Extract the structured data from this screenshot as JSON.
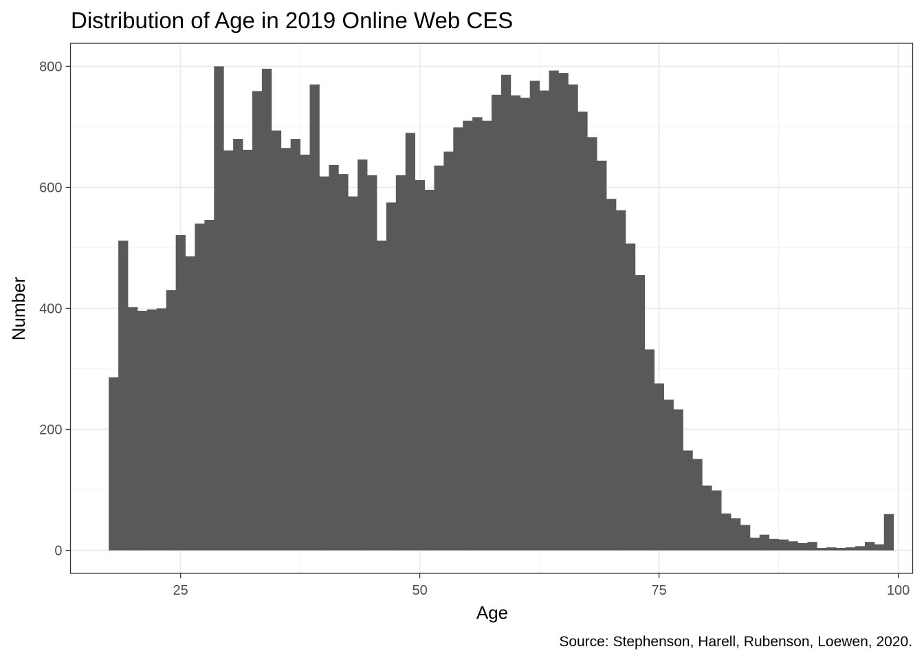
{
  "chart_data": {
    "type": "bar",
    "title": "Distribution of Age in 2019 Online Web CES",
    "xlabel": "Age",
    "ylabel": "Number",
    "caption": "Source: Stephenson, Harell, Rubenson, Loewen, 2020.",
    "xlim": [
      13.5,
      101.5
    ],
    "ylim": [
      -38,
      838
    ],
    "xticks": [
      25,
      50,
      75,
      100
    ],
    "yticks": [
      0,
      200,
      400,
      600,
      800
    ],
    "bar_color": "#595959",
    "grid": true,
    "x": [
      18,
      19,
      20,
      21,
      22,
      23,
      24,
      25,
      26,
      27,
      28,
      29,
      30,
      31,
      32,
      33,
      34,
      35,
      36,
      37,
      38,
      39,
      40,
      41,
      42,
      43,
      44,
      45,
      46,
      47,
      48,
      49,
      50,
      51,
      52,
      53,
      54,
      55,
      56,
      57,
      58,
      59,
      60,
      61,
      62,
      63,
      64,
      65,
      66,
      67,
      68,
      69,
      70,
      71,
      72,
      73,
      74,
      75,
      76,
      77,
      78,
      79,
      80,
      81,
      82,
      83,
      84,
      85,
      86,
      87,
      88,
      89,
      90,
      91,
      92,
      93,
      94,
      95,
      96,
      97,
      98,
      99
    ],
    "values": [
      286,
      512,
      402,
      396,
      398,
      400,
      430,
      521,
      486,
      540,
      546,
      800,
      661,
      680,
      662,
      759,
      796,
      694,
      665,
      680,
      654,
      770,
      618,
      637,
      622,
      585,
      646,
      620,
      512,
      575,
      620,
      690,
      612,
      596,
      636,
      659,
      699,
      710,
      716,
      710,
      753,
      786,
      752,
      748,
      776,
      760,
      793,
      789,
      770,
      725,
      683,
      644,
      581,
      562,
      507,
      455,
      332,
      276,
      249,
      233,
      165,
      151,
      107,
      99,
      61,
      53,
      42,
      21,
      26,
      19,
      18,
      15,
      12,
      14,
      4,
      5,
      4,
      5,
      7,
      14,
      10,
      60
    ]
  }
}
